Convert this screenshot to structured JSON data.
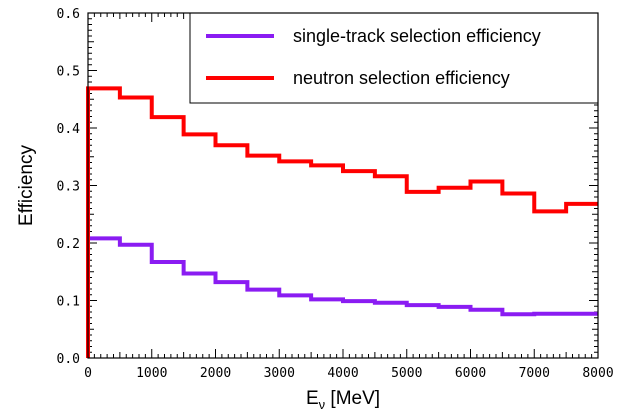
{
  "chart_data": {
    "type": "line",
    "step": true,
    "xlabel_main": "E",
    "xlabel_sub": "ν",
    "xlabel_unit": " [MeV]",
    "ylabel": "Efficiency",
    "xlim": [
      0,
      8000
    ],
    "ylim": [
      0,
      0.6
    ],
    "x_ticks": [
      "0",
      "1000",
      "2000",
      "3000",
      "4000",
      "5000",
      "6000",
      "7000",
      "8000"
    ],
    "y_ticks": [
      "0.0",
      "0.1",
      "0.2",
      "0.3",
      "0.4",
      "0.5",
      "0.6"
    ],
    "legend_position": "top-right",
    "bin_edges": [
      0,
      500,
      1000,
      1500,
      2000,
      2500,
      3000,
      3500,
      4000,
      4500,
      5000,
      5500,
      6000,
      6500,
      7000,
      7500,
      8000
    ],
    "series": [
      {
        "name": "single-track selection efficiency",
        "color": "#8a1cf2",
        "values": [
          0.208,
          0.197,
          0.167,
          0.147,
          0.132,
          0.119,
          0.109,
          0.102,
          0.099,
          0.096,
          0.092,
          0.089,
          0.084,
          0.076,
          0.077,
          0.077
        ]
      },
      {
        "name": "neutron selection efficiency",
        "color": "#ff0000",
        "values": [
          0.469,
          0.453,
          0.419,
          0.389,
          0.37,
          0.352,
          0.342,
          0.335,
          0.325,
          0.316,
          0.289,
          0.296,
          0.307,
          0.286,
          0.255,
          0.268
        ]
      }
    ]
  }
}
